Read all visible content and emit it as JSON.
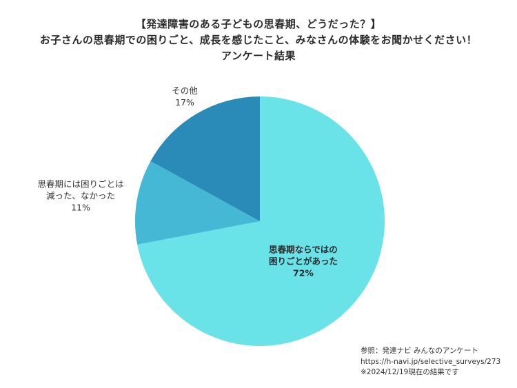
{
  "chart_data": {
    "type": "pie",
    "title_lines": [
      "【発達障害のある子どもの思春期、どうだった？】",
      "お子さんの思春期での困りごと、成長を感じたこと、みなさんの体験をお聞かせください！",
      "アンケート結果"
    ],
    "slices": [
      {
        "label_lines": [
          "思春期ならではの",
          "困りごとがあった"
        ],
        "value": 72,
        "value_label": "72%",
        "color": "#6ae3e8"
      },
      {
        "label_lines": [
          "思春期には困りごとは",
          "減った、なかった"
        ],
        "value": 11,
        "value_label": "11%",
        "color": "#45b8d5"
      },
      {
        "label_lines": [
          "その他"
        ],
        "value": 17,
        "value_label": "17%",
        "color": "#2a8ab8"
      }
    ],
    "start_angle_deg": 0,
    "direction": "clockwise"
  },
  "footer": {
    "source_label": "参照：発達ナビ みんなのアンケート",
    "url": "https://h-navi.jp/selective_surveys/273",
    "note": "※2024/12/19現在の結果です"
  }
}
